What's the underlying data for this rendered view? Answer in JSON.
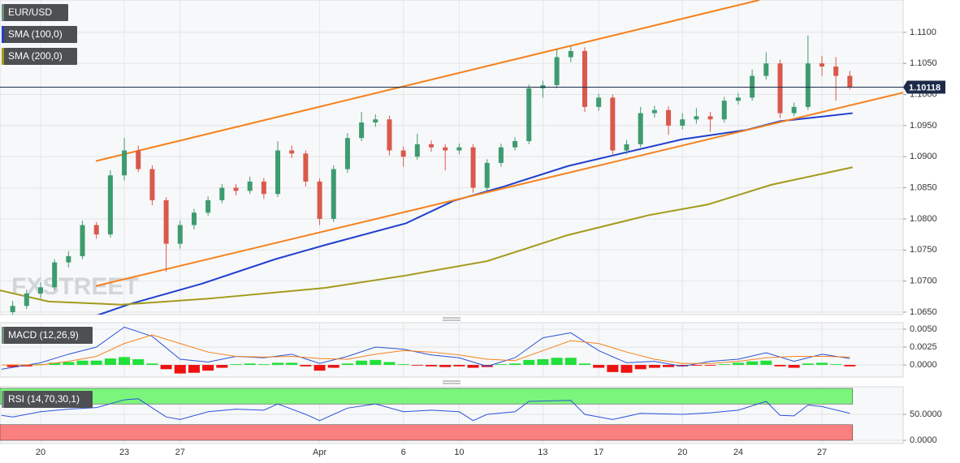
{
  "chart_data": [
    {
      "type": "candlestick",
      "title": "EUR/USD",
      "watermark": "FXSTREET",
      "up_color": "#3d9b70",
      "down_color": "#d9594c",
      "grid": true,
      "xlim": [
        -1.455,
        30.91
      ],
      "ylim": [
        1.0646,
        1.1152
      ],
      "xticks": [
        {
          "value": 0,
          "label": "20"
        },
        {
          "value": 3,
          "label": "23"
        },
        {
          "value": 5,
          "label": "27"
        },
        {
          "value": 10,
          "label": "Apr"
        },
        {
          "value": 13,
          "label": "6"
        },
        {
          "value": 15,
          "label": "10"
        },
        {
          "value": 18,
          "label": "13"
        },
        {
          "value": 20,
          "label": "17"
        },
        {
          "value": 23,
          "label": "20"
        },
        {
          "value": 25,
          "label": "24"
        },
        {
          "value": 28,
          "label": "27"
        }
      ],
      "yticks": [
        {
          "value": 1.065,
          "label": "1.0650"
        },
        {
          "value": 1.07,
          "label": "1.0700"
        },
        {
          "value": 1.075,
          "label": "1.0750"
        },
        {
          "value": 1.08,
          "label": "1.0800"
        },
        {
          "value": 1.085,
          "label": "1.0850"
        },
        {
          "value": 1.09,
          "label": "1.0900"
        },
        {
          "value": 1.095,
          "label": "1.0950"
        },
        {
          "value": 1.1,
          "label": "1.1000"
        },
        {
          "value": 1.105,
          "label": "1.1050"
        },
        {
          "value": 1.11,
          "label": "1.1100"
        }
      ],
      "x": [
        -1,
        -0.5,
        0,
        0.5,
        1,
        1.5,
        2,
        2.5,
        3,
        3.5,
        4,
        4.5,
        5,
        5.5,
        6,
        6.5,
        7,
        7.5,
        8,
        8.5,
        9,
        9.5,
        10,
        10.5,
        11,
        11.5,
        12,
        12.5,
        13,
        13.5,
        14,
        14.5,
        15,
        15.5,
        16,
        16.5,
        17,
        17.5,
        18,
        18.5,
        19,
        19.5,
        20,
        20.5,
        21,
        21.5,
        22,
        22.5,
        23,
        23.5,
        24,
        24.5,
        25,
        25.5,
        26,
        26.5,
        27,
        27.5,
        28,
        28.5,
        29
      ],
      "open": [
        1.065,
        1.066,
        1.068,
        1.069,
        1.073,
        1.074,
        1.079,
        1.0775,
        1.087,
        1.091,
        1.088,
        1.083,
        1.076,
        1.079,
        1.081,
        1.083,
        1.085,
        1.0845,
        1.086,
        1.084,
        1.091,
        1.0905,
        1.086,
        1.08,
        1.088,
        1.093,
        1.0955,
        1.096,
        1.091,
        1.09,
        1.092,
        1.0915,
        1.091,
        1.0915,
        1.085,
        1.089,
        1.0915,
        1.0925,
        1.101,
        1.1015,
        1.106,
        1.107,
        1.098,
        1.0995,
        1.091,
        1.092,
        1.097,
        1.0975,
        1.095,
        1.096,
        1.0965,
        1.096,
        1.099,
        1.0995,
        1.103,
        1.105,
        1.097,
        1.098,
        1.105,
        1.1045,
        1.103
      ],
      "high": [
        1.0668,
        1.0686,
        1.0698,
        1.0735,
        1.0748,
        1.0797,
        1.0795,
        1.0878,
        1.093,
        1.0918,
        1.0886,
        1.0835,
        1.0797,
        1.0816,
        1.0836,
        1.0856,
        1.0856,
        1.0868,
        1.0866,
        1.0925,
        1.0918,
        1.091,
        1.0865,
        1.0886,
        1.0938,
        1.0972,
        1.0968,
        1.0966,
        1.0916,
        1.0937,
        1.0926,
        1.092,
        1.0921,
        1.092,
        1.0896,
        1.0921,
        1.0931,
        1.1016,
        1.1022,
        1.1072,
        1.1078,
        1.1076,
        1.1001,
        1.1,
        1.0927,
        1.098,
        1.0982,
        1.0981,
        1.097,
        1.0978,
        1.0972,
        1.0996,
        1.1002,
        1.104,
        1.1068,
        1.1056,
        1.0987,
        1.1095,
        1.1062,
        1.106,
        1.1038
      ],
      "low": [
        1.0645,
        1.0655,
        1.0672,
        1.0685,
        1.0722,
        1.0735,
        1.0768,
        1.077,
        1.0862,
        1.0875,
        1.0822,
        1.0715,
        1.0752,
        1.0783,
        1.0805,
        1.0825,
        1.0838,
        1.084,
        1.0832,
        1.0835,
        1.0898,
        1.0852,
        1.079,
        1.0795,
        1.0874,
        1.0925,
        1.0948,
        1.0902,
        1.0884,
        1.0895,
        1.0908,
        1.0878,
        1.0904,
        1.0842,
        1.0845,
        1.0884,
        1.091,
        1.092,
        1.0995,
        1.101,
        1.1052,
        1.0972,
        1.0974,
        1.0902,
        1.0904,
        1.0915,
        1.0963,
        1.0935,
        1.0944,
        1.0953,
        1.094,
        1.0955,
        1.0984,
        1.099,
        1.1024,
        1.0962,
        1.0965,
        1.0975,
        1.103,
        1.099,
        1.1008
      ],
      "close": [
        1.066,
        1.068,
        1.069,
        1.073,
        1.074,
        1.079,
        1.0775,
        1.087,
        1.091,
        1.088,
        1.083,
        1.076,
        1.079,
        1.081,
        1.083,
        1.085,
        1.0845,
        1.086,
        1.084,
        1.091,
        1.0905,
        1.086,
        1.08,
        1.088,
        1.093,
        1.0955,
        1.096,
        1.091,
        1.09,
        1.092,
        1.0915,
        1.091,
        1.0915,
        1.085,
        1.089,
        1.0915,
        1.0925,
        1.101,
        1.1015,
        1.106,
        1.107,
        1.098,
        1.0995,
        1.091,
        1.092,
        1.097,
        1.0975,
        1.095,
        1.096,
        1.0965,
        1.096,
        1.099,
        1.0995,
        1.103,
        1.105,
        1.097,
        1.098,
        1.105,
        1.1045,
        1.103,
        1.1012
      ],
      "series": [
        {
          "name": "SMA (100,0)",
          "color": "#1f3fcf",
          "x": [
            1.9,
            3.2,
            5.8,
            8.4,
            10.2,
            13.1,
            14.8,
            16.6,
            18.9,
            20.7,
            23,
            25.3,
            26.5,
            29.1
          ],
          "values": [
            1.0643,
            1.0663,
            1.0696,
            1.0735,
            1.0758,
            1.0793,
            1.0829,
            1.0852,
            1.0885,
            1.0904,
            1.0928,
            1.0943,
            1.0957,
            1.097
          ]
        },
        {
          "name": "SMA (200,0)",
          "color": "#a39a1c",
          "x": [
            -1.46,
            0.29,
            2.9,
            6.1,
            10.2,
            13.1,
            16,
            18.9,
            21.8,
            23.9,
            26.2,
            29.1
          ],
          "values": [
            1.0685,
            1.0667,
            1.0662,
            1.0672,
            1.0689,
            1.0709,
            1.0732,
            1.0774,
            1.0806,
            1.0823,
            1.0855,
            1.0883
          ]
        }
      ],
      "trendlines": [
        {
          "color": "#f5821f",
          "x": [
            1.98,
            25.76
          ],
          "values": [
            1.0893,
            1.1152
          ]
        },
        {
          "color": "#f5821f",
          "x": [
            1.98,
            30.91
          ],
          "values": [
            1.0692,
            1.1003
          ]
        }
      ],
      "last": {
        "value": 1.10118,
        "label": "1.10118",
        "color": "#1c2b4a"
      }
    },
    {
      "type": "macd",
      "title": "MACD (12,26,9)",
      "up_color": "#22e03a",
      "down_color": "#ee1111",
      "grid": true,
      "xlim": [
        -1.455,
        30.91
      ],
      "ylim": [
        -0.0017,
        0.00591
      ],
      "yticks": [
        {
          "value": 0.005,
          "label": "0.0050"
        },
        {
          "value": 0.0025,
          "label": "0.0025"
        },
        {
          "value": 0,
          "label": "0.0000"
        }
      ],
      "x": [
        -1,
        -0.5,
        0,
        0.5,
        1,
        1.5,
        2,
        2.5,
        3,
        3.5,
        4,
        4.5,
        5,
        5.5,
        6,
        6.5,
        7,
        7.5,
        8,
        8.5,
        9,
        9.5,
        10,
        10.5,
        11,
        11.5,
        12,
        12.5,
        13,
        13.5,
        14,
        14.5,
        15,
        15.5,
        16,
        16.5,
        17,
        17.5,
        18,
        18.5,
        19,
        19.5,
        20,
        20.5,
        21,
        21.5,
        22,
        22.5,
        23,
        23.5,
        24,
        24.5,
        25,
        25.5,
        26,
        26.5,
        27,
        27.5,
        28,
        28.5,
        29
      ],
      "values": [
        -0.0003,
        -0.0002,
        0.0001,
        0.0003,
        0.0004,
        0.0006,
        0.0006,
        0.0009,
        0.0011,
        0.0008,
        0.0002,
        -0.0006,
        -0.0012,
        -0.0011,
        -0.0008,
        -0.0004,
        0.0001,
        0.0002,
        0.0001,
        0.0003,
        0.0003,
        -0.0002,
        -0.0008,
        -0.0004,
        0.0002,
        0.0006,
        0.0007,
        0.0004,
        0.0001,
        -0.0001,
        -0.0002,
        -0.0003,
        -0.0002,
        -0.0004,
        -0.0003,
        0.0001,
        0.0002,
        0.0007,
        0.0008,
        0.001,
        0.001,
        0.0002,
        -0.0004,
        -0.001,
        -0.0011,
        -0.0006,
        -0.0004,
        -0.0003,
        -0.0002,
        -0.0001,
        -0.0001,
        0.0001,
        0.0003,
        0.0005,
        0.0006,
        -0.0002,
        -0.0004,
        0.0002,
        0.0003,
        0.0001,
        -0.0002
      ],
      "series": [
        {
          "color": "#2b52d9",
          "x": [
            -1.4,
            0,
            1,
            2,
            3,
            4,
            5,
            6,
            7,
            8,
            9,
            10,
            11,
            12,
            13,
            14,
            15,
            16,
            17,
            18,
            19,
            20,
            21,
            22,
            23,
            24,
            25,
            26,
            27,
            28,
            29
          ],
          "values": [
            -0.0006,
            0.0003,
            0.0015,
            0.0025,
            0.0053,
            0.004,
            0.0008,
            0.0004,
            0.0012,
            0.001,
            0.0015,
            0.0002,
            0.0012,
            0.0025,
            0.0022,
            0.0014,
            0.001,
            -0.0002,
            0.001,
            0.0038,
            0.0045,
            0.002,
            0.0003,
            0.0005,
            -0.0002,
            0.0005,
            0.0008,
            0.0017,
            0.0005,
            0.0015,
            0.0009
          ]
        },
        {
          "color": "#f5821f",
          "x": [
            -1.4,
            0,
            1,
            2,
            3,
            4,
            5,
            6,
            7,
            8,
            9,
            10,
            11,
            12,
            13,
            14,
            15,
            16,
            17,
            18,
            19,
            20,
            21,
            22,
            23,
            24,
            25,
            26,
            27,
            28,
            29
          ],
          "values": [
            0,
            0,
            0.0005,
            0.0012,
            0.003,
            0.0042,
            0.003,
            0.0018,
            0.0012,
            0.0011,
            0.0012,
            0.0009,
            0.0008,
            0.0015,
            0.002,
            0.0018,
            0.0014,
            0.0008,
            0.0006,
            0.002,
            0.0034,
            0.003,
            0.0018,
            0.0008,
            0.0002,
            0.0002,
            0.0005,
            0.001,
            0.0012,
            0.0012,
            0.0011
          ]
        }
      ]
    },
    {
      "type": "rsi",
      "title": "RSI (14,70,30,1)",
      "grid": true,
      "xlim": [
        -1.455,
        30.91
      ],
      "ylim": [
        -6.25,
        103.1
      ],
      "yticks": [
        {
          "value": 50,
          "label": "50.0000"
        },
        {
          "value": 0,
          "label": "0.0000"
        }
      ],
      "bands": [
        {
          "range": [
            70,
            100
          ],
          "color": "#7cf57c"
        },
        {
          "range": [
            0,
            30
          ],
          "color": "#fa8080"
        }
      ],
      "band_end": 29.1,
      "series": [
        {
          "color": "#2b52d9",
          "x": [
            -1.4,
            -1,
            0,
            1,
            2,
            3,
            3.5,
            4.5,
            5,
            6,
            7,
            8,
            8.5,
            9.5,
            10,
            11,
            12,
            13,
            14,
            15,
            15.5,
            16,
            17,
            17.5,
            19,
            19.5,
            20.5,
            21.5,
            23,
            24,
            25,
            26,
            26.5,
            27,
            27.5,
            28,
            29
          ],
          "values": [
            48,
            45,
            55,
            60,
            63,
            78,
            80,
            45,
            40,
            55,
            60,
            58,
            70,
            50,
            38,
            62,
            70,
            55,
            58,
            55,
            38,
            50,
            55,
            75,
            77,
            50,
            40,
            52,
            50,
            53,
            58,
            75,
            48,
            47,
            68,
            65,
            52
          ]
        }
      ]
    }
  ]
}
